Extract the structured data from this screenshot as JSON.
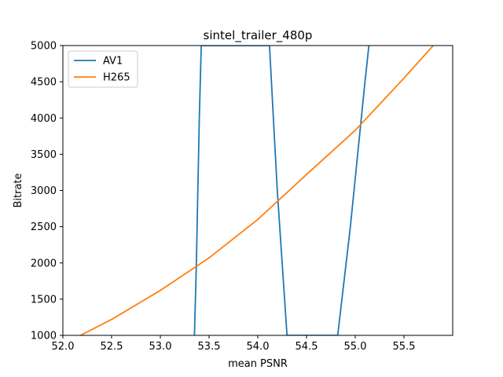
{
  "chart_data": {
    "type": "line",
    "title": "sintel_trailer_480p",
    "xlabel": "mean PSNR",
    "ylabel": "Bitrate",
    "xlim": [
      52.0,
      56.0
    ],
    "ylim": [
      1000,
      5000
    ],
    "xticks": [
      52.0,
      52.5,
      53.0,
      53.5,
      54.0,
      54.5,
      55.0,
      55.5
    ],
    "yticks": [
      1000,
      1500,
      2000,
      2500,
      3000,
      3500,
      4000,
      4500,
      5000
    ],
    "grid": false,
    "legend_position": "top-left",
    "series": [
      {
        "name": "AV1",
        "color": "#1f77b4",
        "x": [
          53.35,
          53.37,
          53.4,
          53.42,
          54.12,
          54.2,
          54.3,
          54.82,
          54.95,
          55.1,
          55.14
        ],
        "y": [
          1000,
          2000,
          4000,
          5000,
          5000,
          3000,
          1000,
          1000,
          2500,
          4500,
          5000
        ]
      },
      {
        "name": "H265",
        "color": "#ff7f0e",
        "x": [
          52.18,
          52.5,
          53.0,
          53.5,
          54.0,
          54.5,
          55.0,
          55.5,
          55.8
        ],
        "y": [
          1000,
          1220,
          1620,
          2070,
          2600,
          3220,
          3830,
          4550,
          5000
        ]
      }
    ]
  }
}
